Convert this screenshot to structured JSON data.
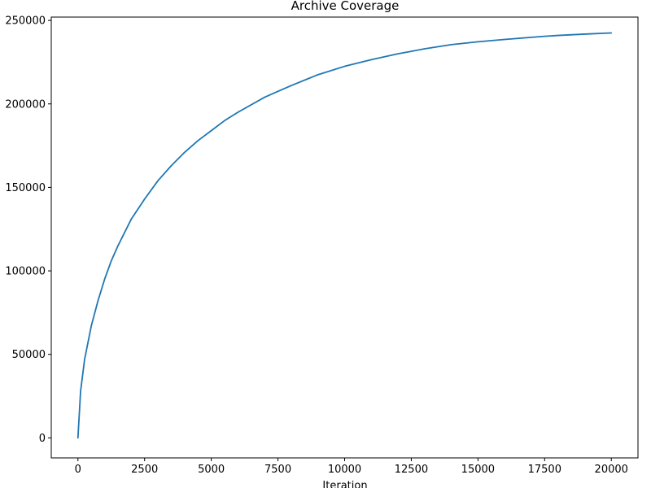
{
  "chart_data": {
    "type": "line",
    "title": "Archive Coverage",
    "xlabel": "Iteration",
    "ylabel": "",
    "xlim": [
      -1000,
      21000
    ],
    "ylim": [
      -12000,
      252000
    ],
    "xticks": [
      0,
      2500,
      5000,
      7500,
      10000,
      12500,
      15000,
      17500,
      20000
    ],
    "yticks": [
      0,
      50000,
      100000,
      150000,
      200000,
      250000
    ],
    "grid": false,
    "legend": "none",
    "series": [
      {
        "color": "#1f77b4",
        "x": [
          0,
          100,
          250,
          500,
          750,
          1000,
          1250,
          1500,
          2000,
          2500,
          3000,
          3500,
          4000,
          4500,
          5000,
          5500,
          6000,
          7000,
          7500,
          8000,
          9000,
          10000,
          11000,
          12000,
          12500,
          13000,
          14000,
          15000,
          16000,
          17000,
          17500,
          18000,
          19000,
          20000
        ],
        "y": [
          0,
          28000,
          47000,
          67000,
          82000,
          95000,
          106000,
          115000,
          131000,
          143000,
          154000,
          163000,
          171000,
          178000,
          184000,
          190000,
          195000,
          204000,
          207500,
          211000,
          217500,
          222500,
          226500,
          230000,
          231500,
          233000,
          235500,
          237200,
          238600,
          239900,
          240500,
          241000,
          241800,
          242500
        ]
      }
    ]
  }
}
